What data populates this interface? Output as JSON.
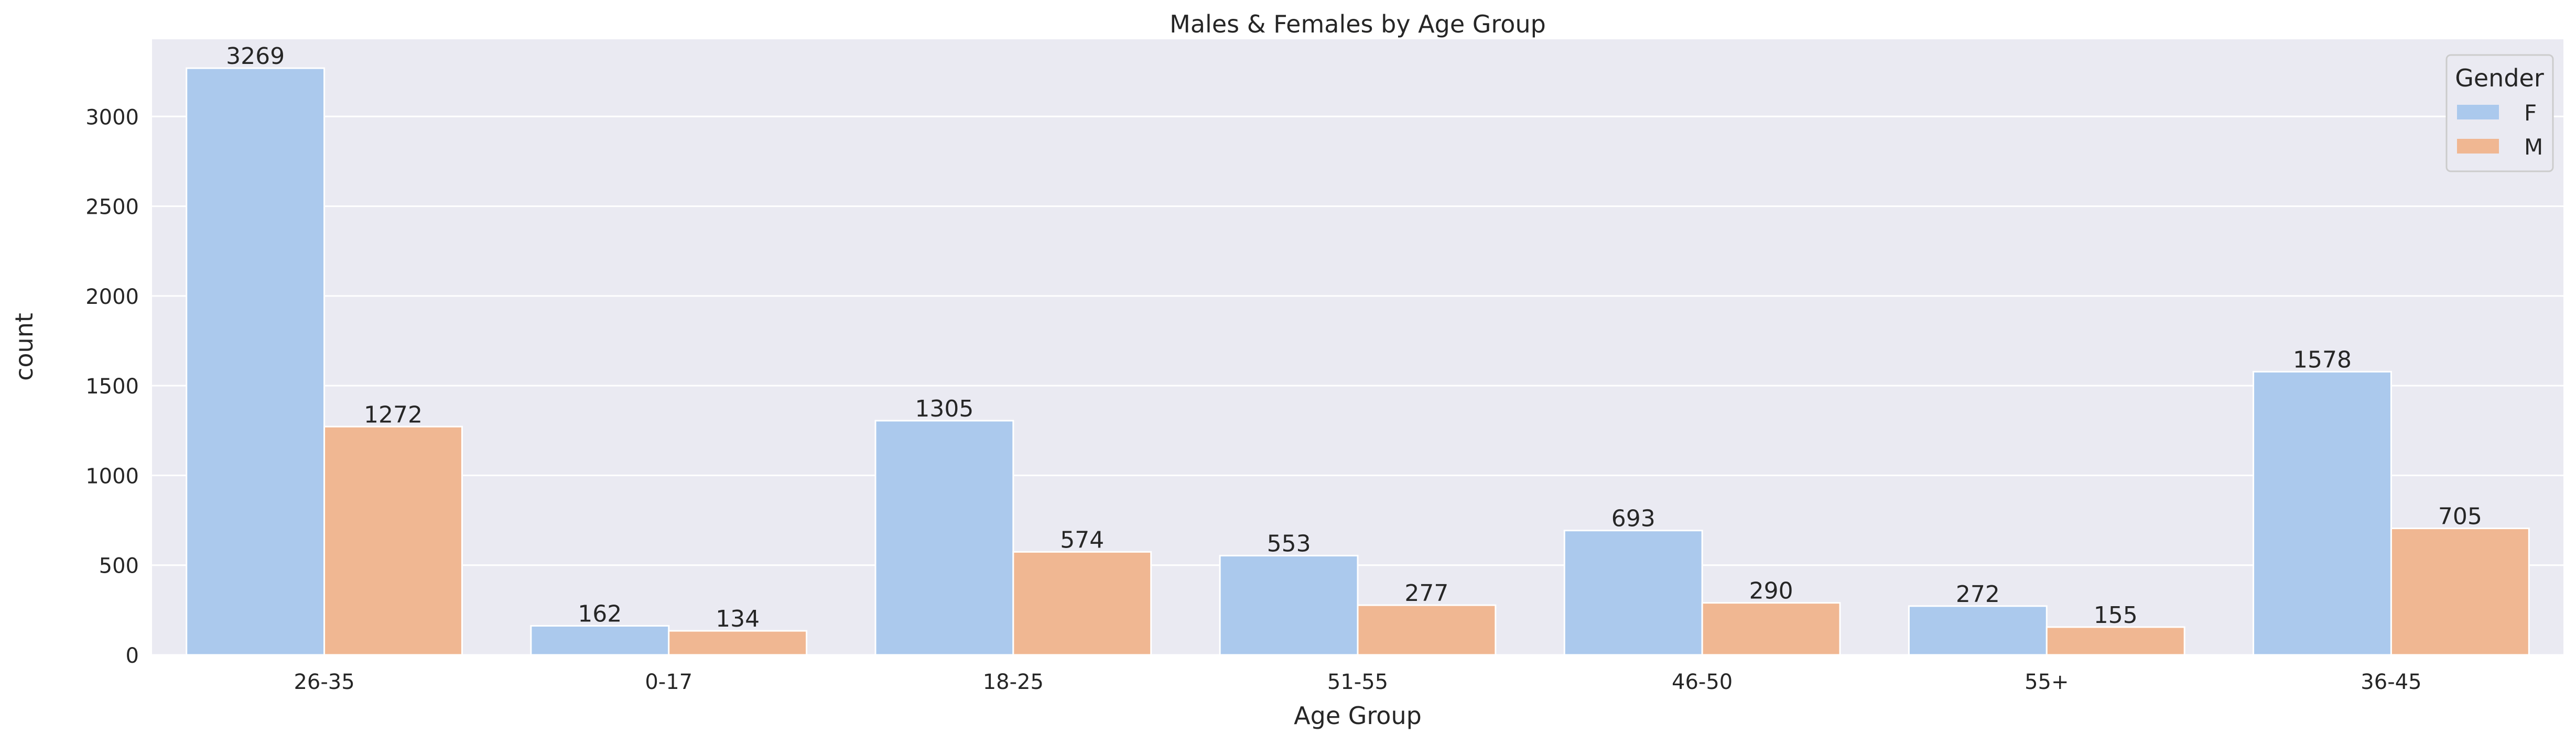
{
  "chart_data": {
    "type": "bar",
    "title": "Males & Females by Age Group",
    "xlabel": "Age Group",
    "ylabel": "count",
    "categories": [
      "26-35",
      "0-17",
      "18-25",
      "51-55",
      "46-50",
      "55+",
      "36-45"
    ],
    "series": [
      {
        "name": "F",
        "values": [
          3269,
          162,
          1305,
          553,
          693,
          272,
          1578
        ],
        "color": "#abc9ed"
      },
      {
        "name": "M",
        "values": [
          1272,
          134,
          574,
          277,
          290,
          155,
          705
        ],
        "color": "#f0b792"
      }
    ],
    "ylim": [
      0,
      3430
    ],
    "yticks": [
      0,
      500,
      1000,
      1500,
      2000,
      2500,
      3000
    ],
    "grid": true,
    "background": "#eaeaf2",
    "legend": {
      "title": "Gender",
      "position": "top-right"
    },
    "data_labels": true
  }
}
